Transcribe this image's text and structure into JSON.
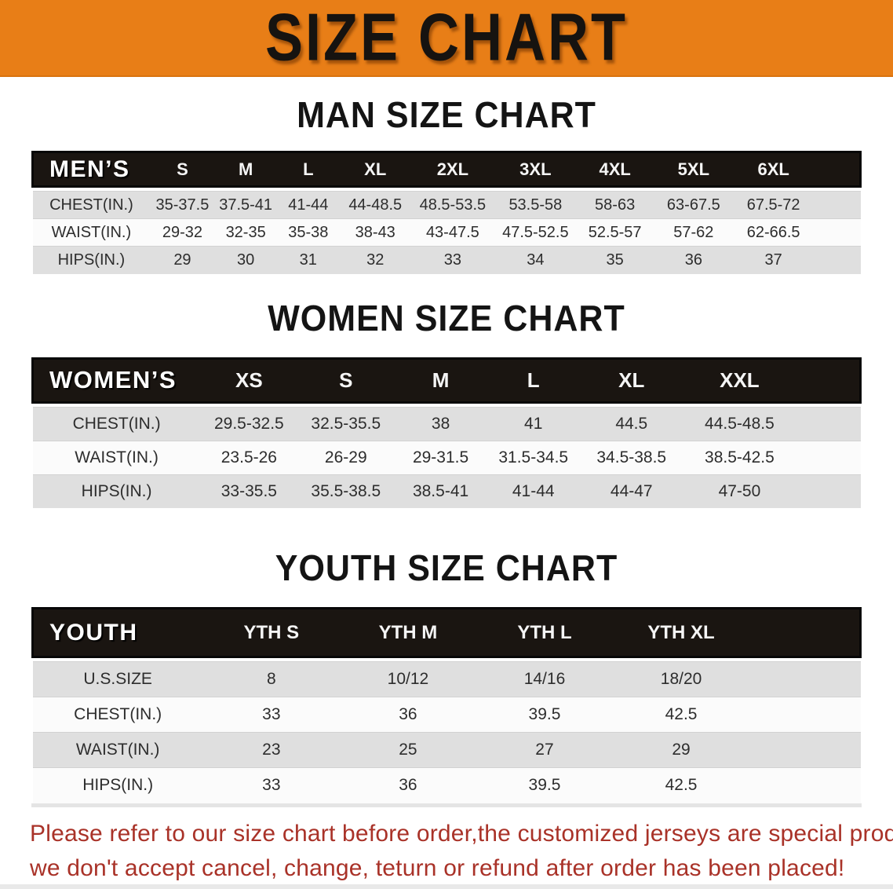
{
  "banner": {
    "title": "SIZE CHART"
  },
  "colors": {
    "banner_bg": "#E87E17",
    "header_band": "#1A1511",
    "row_shaded": "#DFDFDF",
    "row_plain": "#FBFBFB",
    "notice_text": "#A93228"
  },
  "sections": [
    {
      "id": "men",
      "heading": "MAN SIZE CHART",
      "header_label": "MEN’S",
      "columns": [
        "S",
        "M",
        "L",
        "XL",
        "2XL",
        "3XL",
        "4XL",
        "5XL",
        "6XL"
      ],
      "rows": [
        {
          "label": "CHEST(IN.)",
          "values": [
            "35-37.5",
            "37.5-41",
            "41-44",
            "44-48.5",
            "48.5-53.5",
            "53.5-58",
            "58-63",
            "63-67.5",
            "67.5-72"
          ]
        },
        {
          "label": "WAIST(IN.)",
          "values": [
            "29-32",
            "32-35",
            "35-38",
            "38-43",
            "43-47.5",
            "47.5-52.5",
            "52.5-57",
            "57-62",
            "62-66.5"
          ]
        },
        {
          "label": "HIPS(IN.)",
          "values": [
            "29",
            "30",
            "31",
            "32",
            "33",
            "34",
            "35",
            "36",
            "37"
          ]
        }
      ]
    },
    {
      "id": "women",
      "heading": "WOMEN SIZE CHART",
      "header_label": "WOMEN’S",
      "columns": [
        "XS",
        "S",
        "M",
        "L",
        "XL",
        "XXL"
      ],
      "rows": [
        {
          "label": "CHEST(IN.)",
          "values": [
            "29.5-32.5",
            "32.5-35.5",
            "38",
            "41",
            "44.5",
            "44.5-48.5"
          ]
        },
        {
          "label": "WAIST(IN.)",
          "values": [
            "23.5-26",
            "26-29",
            "29-31.5",
            "31.5-34.5",
            "34.5-38.5",
            "38.5-42.5"
          ]
        },
        {
          "label": "HIPS(IN.)",
          "values": [
            "33-35.5",
            "35.5-38.5",
            "38.5-41",
            "41-44",
            "44-47",
            "47-50"
          ]
        }
      ]
    },
    {
      "id": "youth",
      "heading": "YOUTH SIZE CHART",
      "header_label": "YOUTH",
      "columns": [
        "YTH S",
        "YTH M",
        "YTH L",
        "YTH XL"
      ],
      "rows": [
        {
          "label": "U.S.SIZE",
          "values": [
            "8",
            "10/12",
            "14/16",
            "18/20"
          ]
        },
        {
          "label": "CHEST(IN.)",
          "values": [
            "33",
            "36",
            "39.5",
            "42.5"
          ]
        },
        {
          "label": "WAIST(IN.)",
          "values": [
            "23",
            "25",
            "27",
            "29"
          ]
        },
        {
          "label": "HIPS(IN.)",
          "values": [
            "33",
            "36",
            "39.5",
            "42.5"
          ]
        }
      ]
    }
  ],
  "footer": {
    "line1": "Please refer to our size chart before order,the customized jerseys are special products,",
    "line2": "we don't accept cancel, change, teturn or refund after order has been placed!"
  }
}
